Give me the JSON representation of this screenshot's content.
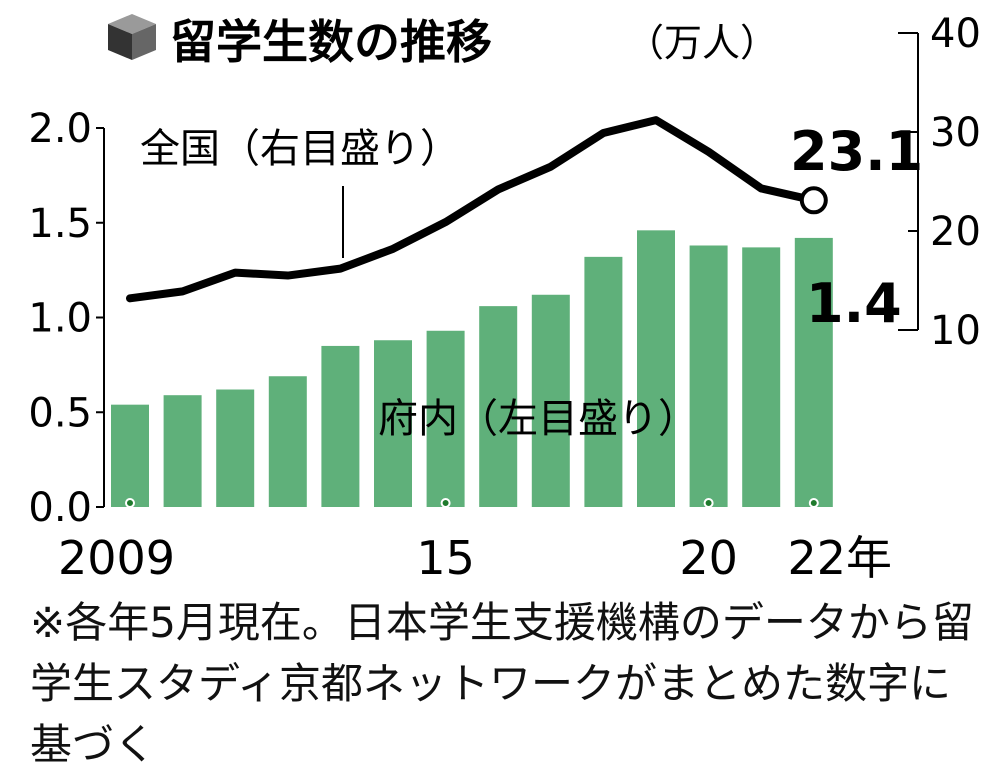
{
  "title": "留学生数の推移",
  "unit": "（万人）",
  "chart_data": {
    "type": "bar+line",
    "categories": [
      "2009",
      "2010",
      "2011",
      "2012",
      "2013",
      "2014",
      "2015",
      "2016",
      "2017",
      "2018",
      "2019",
      "2020",
      "2021",
      "2022"
    ],
    "x_tick_labels": [
      {
        "index": 0,
        "label": "2009"
      },
      {
        "index": 6,
        "label": "15"
      },
      {
        "index": 11,
        "label": "20"
      },
      {
        "index": 13,
        "label": "22年"
      }
    ],
    "series": [
      {
        "name": "府内（左目盛り）",
        "type": "bar",
        "axis": "left",
        "color": "#5fb07a",
        "values": [
          0.54,
          0.59,
          0.62,
          0.69,
          0.85,
          0.88,
          0.93,
          1.06,
          1.12,
          1.32,
          1.46,
          1.38,
          1.37,
          1.42
        ]
      },
      {
        "name": "全国（右目盛り）",
        "type": "line",
        "axis": "right",
        "color": "#000000",
        "values": [
          13.2,
          13.9,
          15.8,
          15.5,
          16.2,
          18.2,
          20.9,
          24.2,
          26.5,
          29.9,
          31.2,
          28.0,
          24.3,
          23.1
        ]
      }
    ],
    "left_axis": {
      "ylim": [
        0,
        2.0
      ],
      "ticks": [
        "0.0",
        "0.5",
        "1.0",
        "1.5",
        "2.0"
      ]
    },
    "right_axis": {
      "ylim": [
        0,
        40
      ],
      "ticks": [
        "10",
        "20",
        "30",
        "40"
      ]
    },
    "annotations": {
      "line_last": "23.1",
      "bar_last": "1.4"
    },
    "grid": false
  },
  "note": "※各年5月現在。日本学生支援機構のデータから留学生スタディ京都ネットワークがまとめた数字に基づく",
  "icon": "cube-icon"
}
